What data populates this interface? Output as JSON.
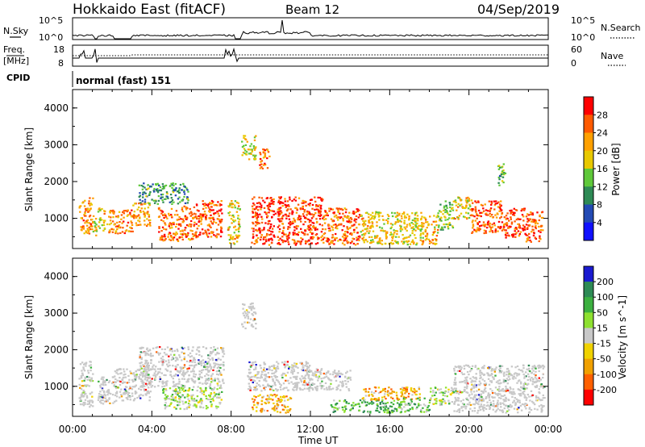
{
  "header": {
    "title": "Hokkaido East (fitACF)",
    "beam": "Beam 12",
    "date": "04/Sep/2019"
  },
  "status_panels": {
    "nsky_label": "N.Sky",
    "nsky_ticks": [
      "10^5",
      "10^0"
    ],
    "nsearch_label": "N.Search",
    "nsearch_ticks": [
      "10^5",
      "10^0"
    ],
    "freq_label_1": "Freq.",
    "freq_label_2": "[MHz]",
    "freq_ticks": [
      "18",
      "8"
    ],
    "nave_label": "Nave",
    "nave_ticks": [
      "60",
      "0"
    ],
    "cpid_label": "CPID",
    "cpid_text": "normal (fast) 151"
  },
  "chart_data": [
    {
      "type": "heatmap",
      "name": "power-panel",
      "ylabel": "Slant Range [km]",
      "y_ticks": [
        "4000",
        "3000",
        "2000",
        "1000"
      ],
      "ylim": [
        180,
        4500
      ],
      "xlim": [
        0,
        24
      ],
      "colorbar": {
        "label": "Power [dB]",
        "ticks": [
          "28",
          "24",
          "20",
          "16",
          "12",
          "8",
          "4"
        ],
        "colors": [
          "#ff0000",
          "#ff5a00",
          "#ffa000",
          "#e8c800",
          "#5fc83a",
          "#2e8a55",
          "#234ab4",
          "#1010ff"
        ]
      },
      "regions": [
        {
          "t": [
            0.3,
            1.0
          ],
          "r": [
            600,
            1600
          ],
          "level": 0.72
        },
        {
          "t": [
            1.0,
            1.2
          ],
          "r": [
            450,
            1100
          ],
          "level": 0.55
        },
        {
          "t": [
            1.25,
            1.6
          ],
          "r": [
            600,
            1300
          ],
          "level": 0.6
        },
        {
          "t": [
            1.7,
            2.1
          ],
          "r": [
            600,
            1250
          ],
          "level": 0.7
        },
        {
          "t": [
            2.1,
            3.0
          ],
          "r": [
            600,
            1250
          ],
          "level": 0.75
        },
        {
          "t": [
            3.0,
            3.9
          ],
          "r": [
            800,
            1450
          ],
          "level": 0.7
        },
        {
          "t": [
            3.3,
            4.6
          ],
          "r": [
            1400,
            2000
          ],
          "level": 0.35
        },
        {
          "t": [
            4.6,
            5.8
          ],
          "r": [
            1400,
            2000
          ],
          "level": 0.35
        },
        {
          "t": [
            4.3,
            6.2
          ],
          "r": [
            400,
            1350
          ],
          "level": 0.78
        },
        {
          "t": [
            6.2,
            7.5
          ],
          "r": [
            500,
            1500
          ],
          "level": 0.82
        },
        {
          "t": [
            7.8,
            8.4
          ],
          "r": [
            300,
            1500
          ],
          "level": 0.6
        },
        {
          "t": [
            8.5,
            9.2
          ],
          "r": [
            2600,
            3300
          ],
          "level": 0.55
        },
        {
          "t": [
            9.0,
            10.2
          ],
          "r": [
            300,
            1600
          ],
          "level": 0.88
        },
        {
          "t": [
            9.4,
            9.9
          ],
          "r": [
            2300,
            2900
          ],
          "level": 0.78
        },
        {
          "t": [
            10.3,
            12.6
          ],
          "r": [
            300,
            1600
          ],
          "level": 0.88
        },
        {
          "t": [
            12.6,
            14.5
          ],
          "r": [
            300,
            1300
          ],
          "level": 0.78
        },
        {
          "t": [
            14.5,
            16.0
          ],
          "r": [
            300,
            1200
          ],
          "level": 0.6
        },
        {
          "t": [
            16.0,
            17.6
          ],
          "r": [
            300,
            1200
          ],
          "level": 0.55
        },
        {
          "t": [
            17.6,
            18.4
          ],
          "r": [
            300,
            1100
          ],
          "level": 0.65
        },
        {
          "t": [
            18.4,
            19.2
          ],
          "r": [
            700,
            1500
          ],
          "level": 0.45
        },
        {
          "t": [
            19.2,
            20.1
          ],
          "r": [
            1000,
            1600
          ],
          "level": 0.6
        },
        {
          "t": [
            20.1,
            21.6
          ],
          "r": [
            600,
            1500
          ],
          "level": 0.82
        },
        {
          "t": [
            21.6,
            22.8
          ],
          "r": [
            450,
            1300
          ],
          "level": 0.86
        },
        {
          "t": [
            22.8,
            23.7
          ],
          "r": [
            350,
            1200
          ],
          "level": 0.8
        },
        {
          "t": [
            21.4,
            21.8
          ],
          "r": [
            1900,
            2500
          ],
          "level": 0.4
        }
      ]
    },
    {
      "type": "heatmap",
      "name": "velocity-panel",
      "ylabel": "Slant Range [km]",
      "y_ticks": [
        "4000",
        "3000",
        "2000",
        "1000"
      ],
      "ylim": [
        180,
        4500
      ],
      "xlim": [
        0,
        24
      ],
      "x_ticks": [
        "00:00",
        "04:00",
        "08:00",
        "12:00",
        "16:00",
        "20:00",
        "00:00"
      ],
      "xlabel": "Time UT",
      "colorbar": {
        "label": "Velocity [m s^-1]",
        "ticks": [
          "200",
          "100",
          "50",
          "15",
          "-15",
          "-50",
          "-100",
          "-200"
        ],
        "colors": [
          "#1a1ad0",
          "#2e8a55",
          "#3cb040",
          "#8ee030",
          "#c8c8c8",
          "#f0d200",
          "#f0a000",
          "#ff6000",
          "#ff0000"
        ]
      },
      "regions": [
        {
          "t": [
            0.3,
            1.0
          ],
          "r": [
            400,
            1700
          ],
          "level": 0.5
        },
        {
          "t": [
            1.25,
            2.1
          ],
          "r": [
            500,
            1300
          ],
          "level": 0.5
        },
        {
          "t": [
            2.1,
            3.9
          ],
          "r": [
            600,
            1500
          ],
          "level": 0.5
        },
        {
          "t": [
            3.3,
            7.6
          ],
          "r": [
            1000,
            2100
          ],
          "level": 0.5
        },
        {
          "t": [
            4.5,
            7.5
          ],
          "r": [
            400,
            1000
          ],
          "level": 0.55
        },
        {
          "t": [
            8.5,
            9.2
          ],
          "r": [
            2600,
            3300
          ],
          "level": 0.5
        },
        {
          "t": [
            8.8,
            12.0
          ],
          "r": [
            900,
            1700
          ],
          "level": 0.5
        },
        {
          "t": [
            9.0,
            11.0
          ],
          "r": [
            300,
            800
          ],
          "level": 0.3
        },
        {
          "t": [
            11.0,
            14.0
          ],
          "r": [
            900,
            1500
          ],
          "level": 0.5
        },
        {
          "t": [
            13.0,
            16.5
          ],
          "r": [
            300,
            650
          ],
          "level": 0.7
        },
        {
          "t": [
            14.5,
            17.5
          ],
          "r": [
            650,
            1000
          ],
          "level": 0.3
        },
        {
          "t": [
            16.5,
            18.0
          ],
          "r": [
            300,
            700
          ],
          "level": 0.65
        },
        {
          "t": [
            18.0,
            19.2
          ],
          "r": [
            500,
            1000
          ],
          "level": 0.55
        },
        {
          "t": [
            19.2,
            23.8
          ],
          "r": [
            300,
            1600
          ],
          "level": 0.5
        }
      ]
    }
  ]
}
